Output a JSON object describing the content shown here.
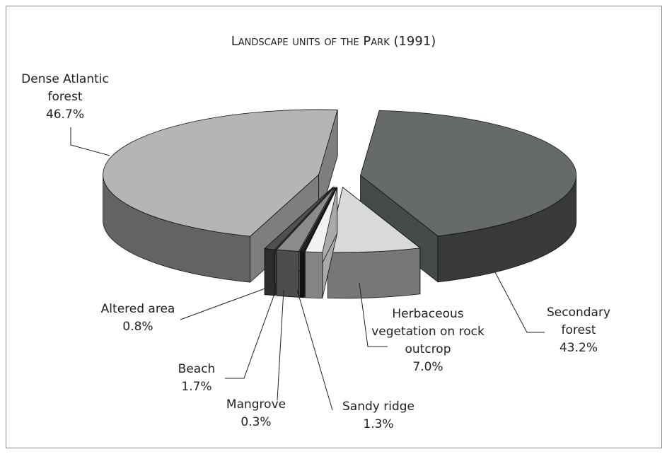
{
  "chart_data": {
    "type": "pie",
    "title": "Landscape units of the Park (1991)",
    "categories": [
      "Secondary forest",
      "Herbaceous vegetation on rock outcrop",
      "Sandy ridge",
      "Mangrove",
      "Beach",
      "Altered area",
      "Dense Atlantic forest"
    ],
    "values": [
      43.2,
      7.0,
      1.3,
      0.3,
      1.7,
      0.8,
      46.7
    ],
    "value_labels": [
      "43.2%",
      "7.0%",
      "1.3%",
      "0.3%",
      "1.7%",
      "0.8%",
      "46.7%"
    ],
    "colors": [
      "#666a69",
      "#d9d9d9",
      "#f2f2f2",
      "#1e2222",
      "#8a8c8b",
      "#4d5251",
      "#b6b4b5"
    ]
  }
}
